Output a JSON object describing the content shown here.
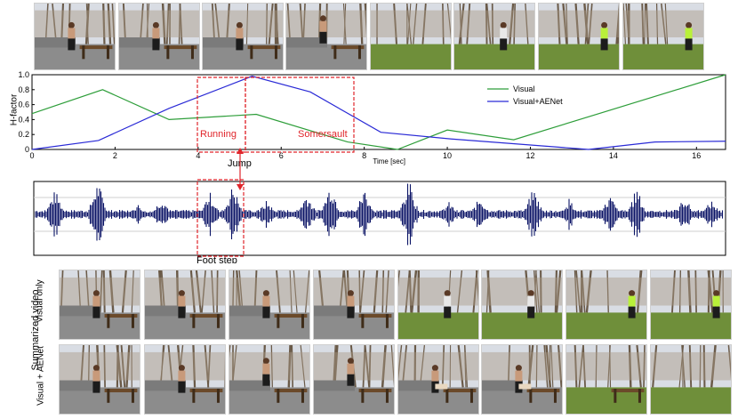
{
  "colors": {
    "visual": "#2e9e3a",
    "visual_aenet": "#2a2ad6",
    "highlight": "#e0252b",
    "waveform": "#0b1466"
  },
  "top_row_frames": [
    {
      "scene": "standing-man-bench"
    },
    {
      "scene": "standing-man-bench"
    },
    {
      "scene": "running-man"
    },
    {
      "scene": "jump-over-bench"
    },
    {
      "scene": "lawn-trees"
    },
    {
      "scene": "lawn-person-walking"
    },
    {
      "scene": "green-shirt-person"
    },
    {
      "scene": "green-shirt-person"
    }
  ],
  "chart_data": {
    "type": "line",
    "ylabel": "H-factor",
    "xlabel": "Time [sec]",
    "xlim": [
      0,
      16.7
    ],
    "ylim": [
      0,
      1.0
    ],
    "x_ticks": [
      "0",
      "2",
      "4",
      "6",
      "8",
      "10",
      "12",
      "14",
      "16"
    ],
    "y_ticks": [
      "0",
      "0.2",
      "0.4",
      "0.6",
      "0.8",
      "1.0"
    ],
    "legend_position": "top-right",
    "series": [
      {
        "name": "Visual",
        "x": [
          0,
          1.7,
          3.3,
          5.4,
          7.6,
          8.8,
          10.0,
          11.6,
          16.7
        ],
        "y": [
          0.48,
          0.8,
          0.4,
          0.47,
          0.1,
          0.0,
          0.26,
          0.13,
          1.0
        ]
      },
      {
        "name": "Visual+AENet",
        "x": [
          0,
          1.6,
          3.3,
          5.3,
          6.7,
          8.4,
          10.1,
          13.4,
          15.0,
          16.7
        ],
        "y": [
          0.0,
          0.12,
          0.55,
          0.98,
          0.77,
          0.23,
          0.14,
          0.0,
          0.1,
          0.11
        ]
      }
    ],
    "annotations": {
      "running": "Running",
      "somersault": "Somersault",
      "jump": "Jump",
      "foot_step": "Foot step"
    }
  },
  "summary": {
    "title": "Summarized video",
    "row_visual_label": "Visual only",
    "row_aenet_label": "Visual + AENet",
    "visual_only_frames": [
      {
        "scene": "standing-man-bench"
      },
      {
        "scene": "standing-man-bench"
      },
      {
        "scene": "standing-man-bench"
      },
      {
        "scene": "standing-man-bench"
      },
      {
        "scene": "lawn-person-walking"
      },
      {
        "scene": "lawn-person-walking"
      },
      {
        "scene": "green-shirt-person"
      },
      {
        "scene": "green-shirt-person"
      }
    ],
    "aenet_frames": [
      {
        "scene": "running-man"
      },
      {
        "scene": "running-man"
      },
      {
        "scene": "jump-over-bench"
      },
      {
        "scene": "flip-over-bench"
      },
      {
        "scene": "landing-bench"
      },
      {
        "scene": "landing-bench"
      },
      {
        "scene": "lawn-bench"
      },
      {
        "scene": "lawn-trees"
      }
    ]
  }
}
